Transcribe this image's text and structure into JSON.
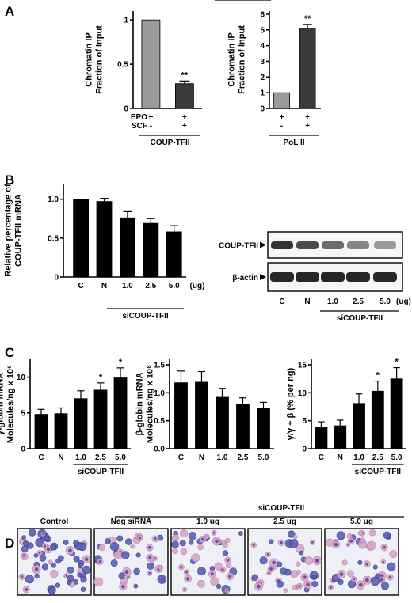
{
  "panels": {
    "A": {
      "label": "A"
    },
    "B": {
      "label": "B",
      "blot": {
        "rows": [
          "COUP-TFII",
          "β-actin"
        ],
        "lanes": [
          "C",
          "N",
          "1.0",
          "2.5",
          "5.0"
        ],
        "unit": "(ug)",
        "group": "siCOUP-TFII"
      }
    },
    "C": {
      "label": "C"
    },
    "D": {
      "label": "D",
      "images": [
        "Control",
        "Neg siRNA",
        "1.0 ug",
        "2.5 ug",
        "5.0 ug"
      ],
      "group": "siCOUP-TFII"
    }
  },
  "chart_data": [
    {
      "id": "A1",
      "type": "bar",
      "ylabel": [
        "Chromatin IP",
        "Fraction of Input"
      ],
      "ylim": [
        0,
        1.1
      ],
      "yticks": [
        "0",
        "0.5",
        "1"
      ],
      "ytick_values": [
        0,
        0.5,
        1
      ],
      "values": [
        1.0,
        0.28
      ],
      "errors": [
        0,
        0.03
      ],
      "bar_colors": [
        "#9a9a9a",
        "#3a3a3a"
      ],
      "significance": [
        "",
        "**"
      ],
      "row_labels": [
        "EPO",
        "SCF"
      ],
      "conditions": [
        [
          "+",
          "-"
        ],
        [
          "+",
          "+"
        ]
      ],
      "group_label": "COUP-TFII"
    },
    {
      "id": "A2",
      "type": "bar",
      "ylabel": [
        "Chromatin IP",
        "Fraction of Input"
      ],
      "ylim": [
        0,
        6.2
      ],
      "yticks": [
        "0",
        "1",
        "2",
        "3",
        "4",
        "5",
        "6"
      ],
      "ytick_values": [
        0,
        1,
        2,
        3,
        4,
        5,
        6
      ],
      "values": [
        1.0,
        5.1
      ],
      "errors": [
        0,
        0.25
      ],
      "bar_colors": [
        "#9a9a9a",
        "#3a3a3a"
      ],
      "significance": [
        "",
        "**"
      ],
      "conditions": [
        [
          "+",
          "-"
        ],
        [
          "+",
          "+"
        ]
      ],
      "group_label": "PoL II"
    },
    {
      "id": "B1",
      "type": "bar",
      "ylabel": [
        "Relative percentage of",
        "COUP-TFII mRNA"
      ],
      "ylim": [
        0,
        1.2
      ],
      "yticks": [
        "0",
        "0.5",
        "1.0"
      ],
      "ytick_values": [
        0,
        0.5,
        1.0
      ],
      "categories": [
        "C",
        "N",
        "1.0",
        "2.5",
        "5.0"
      ],
      "unit": "(ug)",
      "values": [
        1.0,
        0.97,
        0.76,
        0.69,
        0.58
      ],
      "errors": [
        0,
        0.04,
        0.08,
        0.06,
        0.08
      ],
      "group_label": "siCOUP-TFII"
    },
    {
      "id": "C1",
      "type": "bar",
      "ylabel": [
        "γ-globin mRNA",
        "Molecules/ng x 10⁶"
      ],
      "ylim": [
        0,
        12.5
      ],
      "yticks": [
        "0",
        "5",
        "10"
      ],
      "ytick_values": [
        0,
        5,
        10
      ],
      "categories": [
        "C",
        "N",
        "1.0",
        "2.5",
        "5.0"
      ],
      "values": [
        4.8,
        4.9,
        7.0,
        8.2,
        9.9
      ],
      "errors": [
        0.7,
        0.8,
        1.1,
        1.0,
        1.4
      ],
      "significance": [
        "",
        "",
        "",
        "*",
        "*"
      ],
      "group_label": "siCOUP-TFII"
    },
    {
      "id": "C2",
      "type": "bar",
      "ylabel": [
        "β-globin mRNA",
        "Molecules/ng x 10⁸"
      ],
      "ylim": [
        0,
        1.6
      ],
      "yticks": [
        "0.0",
        "0.5",
        "1.0",
        "1.5"
      ],
      "ytick_values": [
        0,
        0.5,
        1.0,
        1.5
      ],
      "categories": [
        "C",
        "N",
        "1.0",
        "2.5",
        "5.0"
      ],
      "values": [
        1.18,
        1.19,
        0.92,
        0.79,
        0.72
      ],
      "errors": [
        0.21,
        0.19,
        0.16,
        0.12,
        0.11
      ],
      "group_label": "siCOUP-TFII"
    },
    {
      "id": "C3",
      "type": "bar",
      "ylabel": [
        "γ/γ + β (% per ng)"
      ],
      "ylim": [
        0,
        16
      ],
      "yticks": [
        "0",
        "5",
        "10",
        "15"
      ],
      "ytick_values": [
        0,
        5,
        10,
        15
      ],
      "categories": [
        "C",
        "N",
        "1.0",
        "2.5",
        "5.0"
      ],
      "values": [
        3.9,
        4.1,
        8.1,
        10.3,
        12.5
      ],
      "errors": [
        0.9,
        1.0,
        1.7,
        1.8,
        2.0
      ],
      "significance": [
        "",
        "",
        "",
        "*",
        "*"
      ],
      "group_label": "siCOUP-TFII"
    }
  ]
}
